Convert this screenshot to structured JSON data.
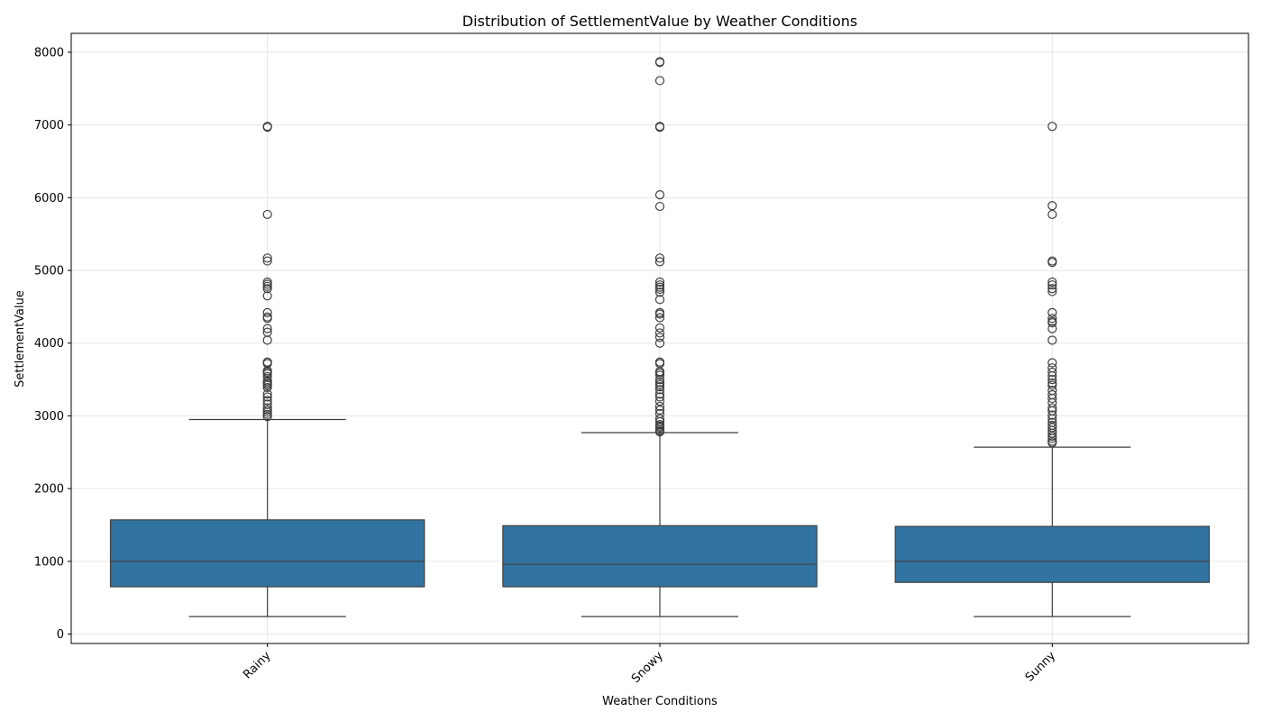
{
  "chart_data": {
    "type": "box",
    "title": "Distribution of SettlementValue by Weather Conditions",
    "xlabel": "Weather Conditions",
    "ylabel": "SettlementValue",
    "ylim": [
      -130,
      8260
    ],
    "yticks": [
      0,
      1000,
      2000,
      3000,
      4000,
      5000,
      6000,
      7000,
      8000
    ],
    "grid": true,
    "box_color": "#3274a1",
    "line_color": "#3f3f3f",
    "categories": [
      "Rainy",
      "Snowy",
      "Sunny"
    ],
    "boxes": [
      {
        "category": "Rainy",
        "whisker_low": 240,
        "q1": 650,
        "median": 1000,
        "q3": 1570,
        "whisker_high": 2950,
        "outliers": [
          6980,
          6970,
          5770,
          5170,
          5130,
          4840,
          4810,
          4780,
          4750,
          4650,
          4420,
          4360,
          4340,
          4200,
          4150,
          4040,
          3740,
          3720,
          3620,
          3600,
          3580,
          3540,
          3480,
          3460,
          3440,
          3420,
          3390,
          3300,
          3260,
          3210,
          3160,
          3110,
          3080,
          3050,
          3020,
          2990
        ]
      },
      {
        "category": "Snowy",
        "whisker_low": 240,
        "q1": 650,
        "median": 960,
        "q3": 1490,
        "whisker_high": 2770,
        "outliers": [
          7870,
          7860,
          7610,
          6980,
          6970,
          6040,
          5880,
          5170,
          5120,
          4840,
          4800,
          4770,
          4740,
          4700,
          4600,
          4420,
          4400,
          4350,
          4210,
          4140,
          4080,
          4000,
          3740,
          3720,
          3610,
          3590,
          3560,
          3500,
          3460,
          3430,
          3400,
          3360,
          3300,
          3260,
          3200,
          3130,
          3080,
          3030,
          2960,
          2920,
          2880,
          2860,
          2840,
          2810,
          2790,
          2780
        ]
      },
      {
        "category": "Sunny",
        "whisker_low": 240,
        "q1": 710,
        "median": 1000,
        "q3": 1480,
        "whisker_high": 2570,
        "outliers": [
          6980,
          5890,
          5770,
          5130,
          5110,
          4840,
          4800,
          4750,
          4710,
          4420,
          4340,
          4300,
          4280,
          4200,
          4040,
          3730,
          3660,
          3600,
          3550,
          3500,
          3450,
          3420,
          3350,
          3290,
          3240,
          3180,
          3110,
          3070,
          3010,
          2960,
          2910,
          2870,
          2840,
          2800,
          2760,
          2720,
          2690,
          2650,
          2630
        ]
      }
    ]
  }
}
